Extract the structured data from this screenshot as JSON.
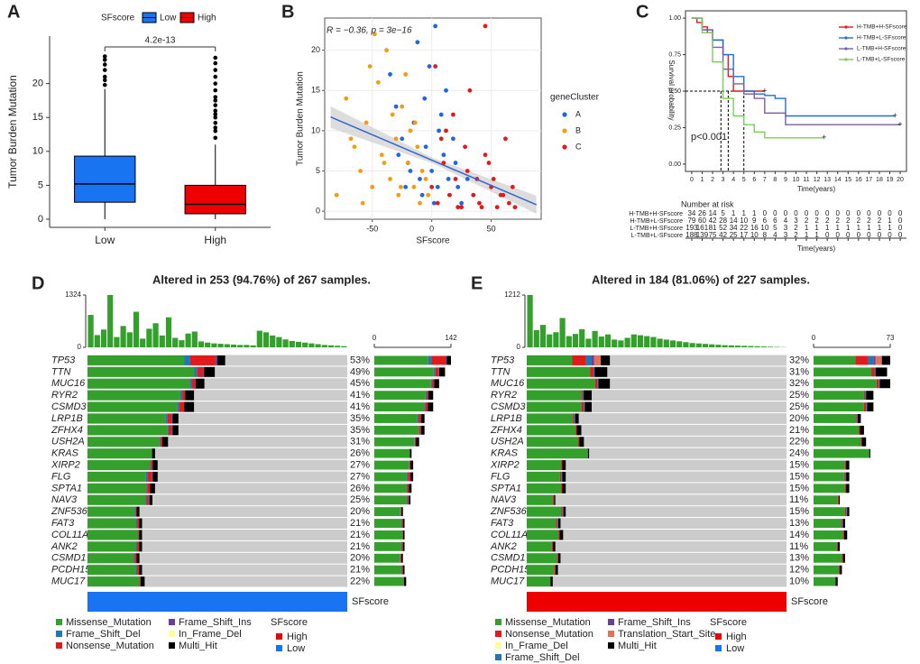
{
  "chart_data": [
    {
      "type": "box",
      "panel": "A",
      "ylabel": "Tumor Burden Mutation",
      "legend_title": "SFscore",
      "annotation": "4.2e-13",
      "categories": [
        "Low",
        "High"
      ],
      "ylim": [
        -1.2,
        27
      ],
      "yticks": [
        0,
        5,
        10,
        15,
        20
      ],
      "series": [
        {
          "name": "Low",
          "color": "#1874f0",
          "min": 0,
          "q1": 2.5,
          "median": 5.2,
          "q3": 9.3,
          "max": 19.2,
          "outliers": [
            19.8,
            20.5,
            21,
            22,
            22.8,
            23.5,
            24
          ]
        },
        {
          "name": "High",
          "color": "#ee0000",
          "min": 0,
          "q1": 0.8,
          "median": 2.2,
          "q3": 5.0,
          "max": 11,
          "outliers": [
            12,
            13,
            13.5,
            14.2,
            15,
            15.5,
            16,
            16.8,
            17.5,
            18,
            19,
            20,
            21,
            22,
            23,
            23.8
          ]
        }
      ]
    },
    {
      "type": "scatter",
      "panel": "B",
      "xlabel": "SFscore",
      "ylabel": "Tumor Burden Mutation",
      "legend_title": "geneCluster",
      "annotation": "R = −0.36, p = 3e−16",
      "xlim": [
        -90,
        92
      ],
      "xticks": [
        -50,
        0,
        50
      ],
      "ylim": [
        -1,
        24
      ],
      "yticks": [
        0,
        5,
        10,
        15,
        20
      ],
      "grid": true,
      "fit": {
        "x": [
          -85,
          88
        ],
        "y": [
          11.7,
          0.8
        ],
        "color": "#3366cc"
      },
      "series": [
        {
          "name": "A",
          "color": "#1f66e5",
          "x": [
            -30,
            -25,
            -20,
            -15,
            -10,
            -5,
            0,
            5,
            10,
            15,
            20,
            25,
            -35,
            -12,
            3,
            8,
            -22,
            30,
            12,
            -8,
            18,
            -2,
            22,
            6,
            -18,
            35,
            -28,
            14,
            2,
            -6
          ],
          "values": [
            13,
            9,
            6,
            11,
            4,
            8,
            5,
            3,
            7,
            2,
            6,
            1,
            17,
            21,
            23,
            12,
            3,
            4,
            15,
            2,
            9,
            18,
            3,
            10,
            5,
            2,
            7,
            4,
            1,
            14
          ]
        },
        {
          "name": "B",
          "color": "#f39c12",
          "x": [
            -80,
            -72,
            -65,
            -60,
            -55,
            -50,
            -45,
            -42,
            -38,
            -35,
            -30,
            -28,
            -25,
            -20,
            -18,
            -15,
            -12,
            -10,
            -8,
            -5,
            -48,
            -58,
            -33,
            -40,
            -22,
            -3,
            -68,
            -52,
            -26,
            -14
          ],
          "values": [
            2,
            14,
            8,
            5,
            11,
            3,
            16,
            7,
            20,
            4,
            9,
            2,
            13,
            6,
            10,
            3,
            8,
            1,
            5,
            4,
            22,
            1,
            12,
            6,
            17,
            2,
            9,
            18,
            3,
            11
          ]
        },
        {
          "name": "C",
          "color": "#e31a1c",
          "x": [
            0,
            5,
            10,
            15,
            20,
            25,
            30,
            35,
            40,
            45,
            50,
            55,
            60,
            65,
            70,
            8,
            18,
            28,
            38,
            48,
            58,
            62,
            12,
            22,
            32,
            42,
            52,
            3,
            45,
            68
          ],
          "values": [
            3,
            1,
            6,
            2,
            4,
            0.5,
            5,
            2,
            1,
            7,
            3,
            0.5,
            2,
            1,
            0.5,
            9,
            12,
            8,
            4,
            6,
            2,
            9,
            10,
            0.5,
            15,
            0.5,
            4,
            18,
            23,
            3
          ]
        }
      ]
    },
    {
      "type": "km",
      "panel": "C",
      "xlabel": "Time(years)",
      "ylabel": "Survival probability",
      "annotation": "p<0.001",
      "risk_title": "Number at risk",
      "xlim": [
        -0.6,
        20.6
      ],
      "xticks": [
        0,
        1,
        2,
        3,
        4,
        5,
        6,
        7,
        8,
        9,
        10,
        11,
        12,
        13,
        14,
        15,
        16,
        17,
        18,
        19,
        20
      ],
      "ylim": [
        -0.05,
        1.05
      ],
      "yticks": [
        {
          "value": 0,
          "label": "0.00"
        },
        0.25,
        {
          "value": 0.5,
          "label": "0.50"
        },
        0.75,
        {
          "value": 1,
          "label": "1.00"
        }
      ],
      "series": [
        {
          "name": "H-TMB+H-SFscore",
          "color": "#e41a1c",
          "x": [
            0,
            0.5,
            1,
            1.5,
            2,
            3,
            3.5,
            4,
            5,
            6,
            7
          ],
          "values": [
            1,
            0.97,
            0.94,
            0.9,
            0.85,
            0.75,
            0.6,
            0.5,
            0.5,
            0.5,
            0.5
          ],
          "at_risk": [
            34,
            26,
            14,
            5,
            1,
            1,
            1,
            0,
            0,
            0,
            0,
            0,
            0,
            0,
            0,
            0,
            0,
            0,
            0,
            0,
            0
          ]
        },
        {
          "name": "H-TMB+L-SFscore",
          "color": "#1f6fe0",
          "x": [
            0,
            1,
            2,
            3,
            4,
            5,
            6,
            7,
            8,
            9,
            10,
            19.5
          ],
          "values": [
            1,
            0.92,
            0.85,
            0.75,
            0.6,
            0.5,
            0.48,
            0.47,
            0.45,
            0.33,
            0.33,
            0.33
          ],
          "at_risk": [
            79,
            60,
            42,
            28,
            14,
            10,
            9,
            6,
            6,
            4,
            3,
            2,
            2,
            2,
            2,
            2,
            2,
            2,
            2,
            1,
            0
          ]
        },
        {
          "name": "L-TMB+H-SFscore",
          "color": "#7b5ea7",
          "x": [
            0,
            1,
            2,
            3,
            4,
            5,
            6,
            7,
            8,
            9,
            10,
            20
          ],
          "values": [
            1,
            0.92,
            0.8,
            0.65,
            0.55,
            0.48,
            0.45,
            0.35,
            0.35,
            0.27,
            0.27,
            0.27
          ],
          "at_risk": [
            193,
            161,
            81,
            52,
            34,
            22,
            16,
            10,
            5,
            3,
            2,
            1,
            1,
            1,
            1,
            1,
            1,
            1,
            1,
            1,
            0
          ]
        },
        {
          "name": "L-TMB+L-SFscore",
          "color": "#7ccd5c",
          "x": [
            0,
            1,
            2,
            3,
            4,
            5,
            6,
            7,
            8,
            9,
            12.7
          ],
          "values": [
            1,
            0.9,
            0.7,
            0.45,
            0.33,
            0.27,
            0.22,
            0.18,
            0.18,
            0.18,
            0.18
          ],
          "at_risk": [
            188,
            139,
            75,
            42,
            25,
            17,
            10,
            8,
            4,
            3,
            2,
            1,
            1,
            0,
            0,
            0,
            0,
            0,
            0,
            0,
            0
          ]
        }
      ]
    },
    {
      "type": "oncoplot",
      "panel": "D",
      "title": "Altered in 253 (94.76%) of 267 samples.",
      "genes": [
        "TP53",
        "TTN",
        "MUC16",
        "RYR2",
        "CSMD3",
        "LRP1B",
        "ZFHX4",
        "USH2A",
        "KRAS",
        "XIRP2",
        "FLG",
        "SPTA1",
        "NAV3",
        "ZNF536",
        "FAT3",
        "COL11A1",
        "ANK2",
        "CSMD1",
        "PCDH15",
        "MUC17"
      ],
      "values": [
        53,
        49,
        45,
        41,
        41,
        35,
        35,
        31,
        26,
        27,
        27,
        26,
        25,
        20,
        21,
        21,
        21,
        20,
        21,
        22
      ],
      "value_labels": [
        "53%",
        "49%",
        "45%",
        "41%",
        "41%",
        "35%",
        "35%",
        "31%",
        "26%",
        "27%",
        "27%",
        "26%",
        "25%",
        "20%",
        "21%",
        "21%",
        "21%",
        "20%",
        "21%",
        "22%"
      ],
      "tmb": [
        820,
        310,
        450,
        1324,
        260,
        540,
        380,
        900,
        220,
        470,
        610,
        300,
        760,
        240,
        180,
        350,
        400,
        150,
        120,
        100,
        90,
        80,
        70,
        60,
        60,
        50,
        420,
        380,
        300,
        260,
        200,
        160,
        140,
        120,
        100,
        80,
        60,
        50,
        40,
        30
      ],
      "tmb_ylim": [
        0,
        1324
      ],
      "tmb_yticks": [
        0,
        1324
      ],
      "side_xlim": [
        0,
        142
      ],
      "side_xticks": [
        0,
        142
      ],
      "legend_rows": 3,
      "series": [
        {
          "name": "Missense_Mutation",
          "color": "#33a02c",
          "values": [
            100,
            110,
            105,
            95,
            92,
            80,
            82,
            74,
            66,
            64,
            60,
            60,
            60,
            48,
            50,
            52,
            50,
            47,
            50,
            54
          ]
        },
        {
          "name": "Frame_Shift_Del",
          "color": "#1f78b4",
          "values": [
            6,
            3,
            2,
            2,
            2,
            2,
            1,
            1,
            0,
            1,
            2,
            1,
            1,
            1,
            1,
            0,
            1,
            1,
            1,
            0
          ]
        },
        {
          "name": "Nonsense_Mutation",
          "color": "#e31a1c",
          "values": [
            26,
            6,
            4,
            3,
            5,
            4,
            3,
            2,
            0,
            2,
            4,
            3,
            2,
            1,
            2,
            1,
            2,
            2,
            2,
            1
          ]
        },
        {
          "name": "Frame_Shift_Ins",
          "color": "#6a3d9a",
          "values": [
            2,
            1,
            0,
            0,
            0,
            1,
            1,
            0,
            0,
            0,
            1,
            0,
            1,
            0,
            0,
            0,
            0,
            0,
            0,
            0
          ]
        },
        {
          "name": "In_Frame_Del",
          "color": "#ffff99",
          "values": [
            0,
            0,
            0,
            0,
            0,
            0,
            0,
            0,
            0,
            0,
            0,
            0,
            0,
            0,
            0,
            0,
            0,
            0,
            0,
            0
          ]
        },
        {
          "name": "Multi_Hit",
          "color": "#000000",
          "values": [
            8,
            11,
            9,
            9,
            10,
            6,
            6,
            6,
            3,
            5,
            5,
            5,
            3,
            3,
            3,
            3,
            3,
            3,
            3,
            4
          ]
        }
      ],
      "annotation_legend": {
        "title": "SFscore",
        "levels": [
          {
            "name": "High",
            "color": "#ee0000"
          },
          {
            "name": "Low",
            "color": "#1874f0"
          }
        ]
      },
      "annotation_level": 1
    },
    {
      "type": "oncoplot",
      "panel": "E",
      "title": "Altered in 184 (81.06%) of 227 samples.",
      "genes": [
        "TP53",
        "TTN",
        "MUC16",
        "RYR2",
        "CSMD3",
        "LRP1B",
        "ZFHX4",
        "USH2A",
        "KRAS",
        "XIRP2",
        "FLG",
        "SPTA1",
        "NAV3",
        "ZNF536",
        "FAT3",
        "COL11A1",
        "ANK2",
        "CSMD1",
        "PCDH15",
        "MUC17"
      ],
      "values": [
        32,
        31,
        32,
        25,
        25,
        20,
        21,
        22,
        24,
        15,
        15,
        15,
        11,
        15,
        13,
        14,
        11,
        13,
        12,
        10
      ],
      "value_labels": [
        "32%",
        "31%",
        "32%",
        "25%",
        "25%",
        "20%",
        "21%",
        "22%",
        "24%",
        "15%",
        "15%",
        "15%",
        "11%",
        "15%",
        "13%",
        "14%",
        "11%",
        "13%",
        "12%",
        "10%"
      ],
      "tmb": [
        1212,
        400,
        520,
        300,
        350,
        680,
        260,
        310,
        420,
        200,
        380,
        250,
        300,
        180,
        160,
        220,
        300,
        280,
        260,
        240,
        200,
        180,
        160,
        140,
        120,
        100,
        90,
        80,
        70,
        60,
        50,
        45,
        40,
        35,
        30,
        25,
        20,
        15,
        10,
        5
      ],
      "tmb_ylim": [
        0,
        1212
      ],
      "tmb_yticks": [
        0,
        1212
      ],
      "side_xlim": [
        0,
        73
      ],
      "side_xticks": [
        0,
        73
      ],
      "legend_rows": 4,
      "series": [
        {
          "name": "Missense_Mutation",
          "color": "#33a02c",
          "values": [
            40,
            55,
            60,
            48,
            48,
            40,
            43,
            45,
            53,
            30,
            29,
            30,
            23,
            30,
            26,
            28,
            22,
            27,
            24,
            21
          ]
        },
        {
          "name": "Nonsense_Mutation",
          "color": "#e31a1c",
          "values": [
            12,
            3,
            2,
            1,
            2,
            1,
            1,
            1,
            0,
            1,
            1,
            1,
            1,
            1,
            1,
            1,
            1,
            1,
            1,
            0
          ]
        },
        {
          "name": "In_Frame_Del",
          "color": "#ffff99",
          "values": [
            0,
            0,
            0,
            0,
            0,
            0,
            0,
            0,
            0,
            0,
            0,
            0,
            0,
            0,
            0,
            0,
            0,
            0,
            0,
            0
          ]
        },
        {
          "name": "Frame_Shift_Del",
          "color": "#1f78b4",
          "values": [
            5,
            1,
            1,
            1,
            1,
            1,
            0,
            0,
            0,
            0,
            1,
            0,
            0,
            1,
            1,
            0,
            0,
            0,
            0,
            0
          ]
        },
        {
          "name": "Frame_Shift_Ins",
          "color": "#6a3d9a",
          "values": [
            2,
            0,
            0,
            0,
            0,
            0,
            0,
            0,
            0,
            0,
            0,
            0,
            0,
            0,
            0,
            0,
            0,
            0,
            0,
            0
          ]
        },
        {
          "name": "Translation_Start_Site",
          "color": "#e0745b",
          "values": [
            6,
            0,
            0,
            0,
            0,
            0,
            0,
            0,
            0,
            0,
            0,
            0,
            0,
            0,
            0,
            0,
            0,
            0,
            0,
            0
          ]
        },
        {
          "name": "Multi_Hit",
          "color": "#000000",
          "values": [
            8,
            11,
            10,
            7,
            6,
            3,
            4,
            4,
            1,
            3,
            3,
            3,
            1,
            2,
            2,
            3,
            2,
            2,
            2,
            2
          ]
        }
      ],
      "annotation_legend": {
        "title": "SFscore",
        "levels": [
          {
            "name": "High",
            "color": "#ee0000"
          },
          {
            "name": "Low",
            "color": "#1874f0"
          }
        ]
      },
      "annotation_level": 0
    }
  ]
}
